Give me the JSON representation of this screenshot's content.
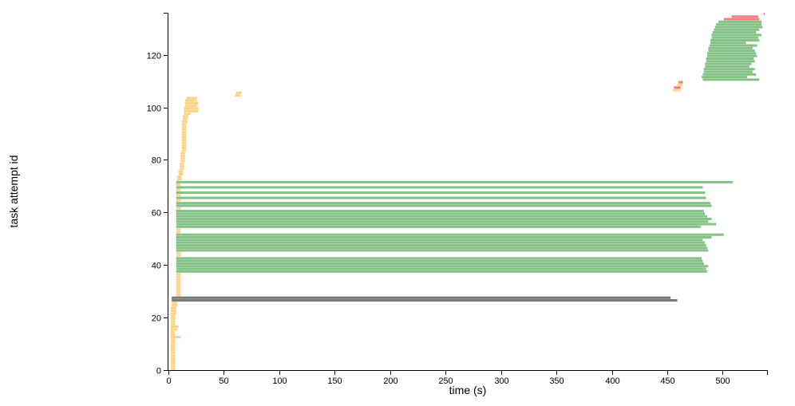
{
  "chart_data": {
    "type": "timeline",
    "xlabel": "time (s)",
    "ylabel": "task attempt id",
    "xlim": [
      0,
      540
    ],
    "ylim": [
      0,
      136
    ],
    "xticks": [
      0,
      50,
      100,
      150,
      200,
      250,
      300,
      350,
      400,
      450,
      500
    ],
    "yticks": [
      0,
      20,
      40,
      60,
      80,
      100,
      120
    ],
    "grid": false,
    "colors": {
      "yellow": "#fdd389",
      "green": "#85c285",
      "gray": "#787878",
      "red": "#f08080"
    },
    "bars": [
      {
        "id": 0,
        "start": 2,
        "end": 6,
        "color": "yellow"
      },
      {
        "id": 1,
        "start": 2,
        "end": 6,
        "color": "yellow"
      },
      {
        "id": 2,
        "start": 2,
        "end": 6,
        "color": "yellow"
      },
      {
        "id": 3,
        "start": 2,
        "end": 6,
        "color": "yellow"
      },
      {
        "id": 4,
        "start": 2,
        "end": 6,
        "color": "yellow"
      },
      {
        "id": 5,
        "start": 2,
        "end": 6,
        "color": "yellow"
      },
      {
        "id": 6,
        "start": 2,
        "end": 6,
        "color": "yellow"
      },
      {
        "id": 7,
        "start": 2,
        "end": 6,
        "color": "yellow"
      },
      {
        "id": 8,
        "start": 2,
        "end": 6,
        "color": "yellow"
      },
      {
        "id": 9,
        "start": 2,
        "end": 6,
        "color": "yellow"
      },
      {
        "id": 10,
        "start": 2,
        "end": 6,
        "color": "yellow"
      },
      {
        "id": 11,
        "start": 2,
        "end": 6,
        "color": "yellow"
      },
      {
        "id": 12,
        "start": 2,
        "end": 11,
        "color": "yellow"
      },
      {
        "id": 13,
        "start": 2,
        "end": 6,
        "color": "yellow"
      },
      {
        "id": 14,
        "start": 2,
        "end": 6,
        "color": "yellow"
      },
      {
        "id": 15,
        "start": 2,
        "end": 8,
        "color": "yellow"
      },
      {
        "id": 16,
        "start": 2,
        "end": 9,
        "color": "yellow"
      },
      {
        "id": 17,
        "start": 2,
        "end": 6,
        "color": "yellow"
      },
      {
        "id": 18,
        "start": 2,
        "end": 6,
        "color": "yellow"
      },
      {
        "id": 19,
        "start": 2,
        "end": 6,
        "color": "yellow"
      },
      {
        "id": 20,
        "start": 2,
        "end": 6,
        "color": "yellow"
      },
      {
        "id": 21,
        "start": 2,
        "end": 7,
        "color": "yellow"
      },
      {
        "id": 22,
        "start": 2,
        "end": 7,
        "color": "yellow"
      },
      {
        "id": 23,
        "start": 2,
        "end": 7,
        "color": "yellow"
      },
      {
        "id": 24,
        "start": 3,
        "end": 8,
        "color": "yellow"
      },
      {
        "id": 25,
        "start": 3,
        "end": 8,
        "color": "yellow"
      },
      {
        "id": 26,
        "start": 3,
        "end": 459,
        "color": "gray"
      },
      {
        "id": 27,
        "start": 3,
        "end": 453,
        "color": "gray"
      },
      {
        "id": 28,
        "start": 7,
        "end": 11,
        "color": "yellow"
      },
      {
        "id": 29,
        "start": 7,
        "end": 11,
        "color": "yellow"
      },
      {
        "id": 30,
        "start": 7,
        "end": 11,
        "color": "yellow"
      },
      {
        "id": 31,
        "start": 7,
        "end": 11,
        "color": "yellow"
      },
      {
        "id": 32,
        "start": 7,
        "end": 11,
        "color": "yellow"
      },
      {
        "id": 33,
        "start": 7,
        "end": 11,
        "color": "yellow"
      },
      {
        "id": 34,
        "start": 7,
        "end": 11,
        "color": "yellow"
      },
      {
        "id": 35,
        "start": 7,
        "end": 11,
        "color": "yellow"
      },
      {
        "id": 36,
        "start": 7,
        "end": 11,
        "color": "yellow"
      },
      {
        "id": 37,
        "start": 7,
        "end": 486,
        "color": "green"
      },
      {
        "id": 38,
        "start": 7,
        "end": 485,
        "color": "green"
      },
      {
        "id": 39,
        "start": 7,
        "end": 487,
        "color": "green"
      },
      {
        "id": 40,
        "start": 7,
        "end": 483,
        "color": "green"
      },
      {
        "id": 41,
        "start": 7,
        "end": 482,
        "color": "green"
      },
      {
        "id": 42,
        "start": 7,
        "end": 481,
        "color": "green"
      },
      {
        "id": 43,
        "start": 7,
        "end": 11,
        "color": "yellow"
      },
      {
        "id": 44,
        "start": 7,
        "end": 11,
        "color": "yellow"
      },
      {
        "id": 45,
        "start": 7,
        "end": 487,
        "color": "green"
      },
      {
        "id": 46,
        "start": 7,
        "end": 486,
        "color": "green"
      },
      {
        "id": 47,
        "start": 7,
        "end": 485,
        "color": "green"
      },
      {
        "id": 48,
        "start": 7,
        "end": 484,
        "color": "green"
      },
      {
        "id": 49,
        "start": 7,
        "end": 482,
        "color": "green"
      },
      {
        "id": 50,
        "start": 7,
        "end": 490,
        "color": "green"
      },
      {
        "id": 51,
        "start": 7,
        "end": 501,
        "color": "green"
      },
      {
        "id": 52,
        "start": 7,
        "end": 11,
        "color": "yellow"
      },
      {
        "id": 53,
        "start": 7,
        "end": 11,
        "color": "yellow"
      },
      {
        "id": 54,
        "start": 7,
        "end": 480,
        "color": "green"
      },
      {
        "id": 55,
        "start": 7,
        "end": 494,
        "color": "green"
      },
      {
        "id": 56,
        "start": 7,
        "end": 487,
        "color": "green"
      },
      {
        "id": 57,
        "start": 7,
        "end": 490,
        "color": "green"
      },
      {
        "id": 58,
        "start": 7,
        "end": 486,
        "color": "green"
      },
      {
        "id": 59,
        "start": 7,
        "end": 484,
        "color": "green"
      },
      {
        "id": 60,
        "start": 7,
        "end": 483,
        "color": "green"
      },
      {
        "id": 61,
        "start": 7,
        "end": 11,
        "color": "yellow"
      },
      {
        "id": 62,
        "start": 7,
        "end": 490,
        "color": "green"
      },
      {
        "id": 63,
        "start": 7,
        "end": 489,
        "color": "green"
      },
      {
        "id": 64,
        "start": 7,
        "end": 11,
        "color": "yellow"
      },
      {
        "id": 65,
        "start": 7,
        "end": 485,
        "color": "green"
      },
      {
        "id": 66,
        "start": 7,
        "end": 11,
        "color": "yellow"
      },
      {
        "id": 67,
        "start": 7,
        "end": 484,
        "color": "green"
      },
      {
        "id": 68,
        "start": 7,
        "end": 11,
        "color": "yellow"
      },
      {
        "id": 69,
        "start": 7,
        "end": 482,
        "color": "green"
      },
      {
        "id": 70,
        "start": 7,
        "end": 11,
        "color": "yellow"
      },
      {
        "id": 71,
        "start": 7,
        "end": 509,
        "color": "green"
      },
      {
        "id": 72,
        "start": 8,
        "end": 12,
        "color": "yellow"
      },
      {
        "id": 73,
        "start": 8,
        "end": 12,
        "color": "yellow"
      },
      {
        "id": 74,
        "start": 9,
        "end": 13,
        "color": "yellow"
      },
      {
        "id": 75,
        "start": 9,
        "end": 13,
        "color": "yellow"
      },
      {
        "id": 76,
        "start": 10,
        "end": 14,
        "color": "yellow"
      },
      {
        "id": 77,
        "start": 10,
        "end": 14,
        "color": "yellow"
      },
      {
        "id": 78,
        "start": 10,
        "end": 14,
        "color": "yellow"
      },
      {
        "id": 79,
        "start": 11,
        "end": 15,
        "color": "yellow"
      },
      {
        "id": 80,
        "start": 11,
        "end": 15,
        "color": "yellow"
      },
      {
        "id": 81,
        "start": 11,
        "end": 15,
        "color": "yellow"
      },
      {
        "id": 82,
        "start": 11,
        "end": 15,
        "color": "yellow"
      },
      {
        "id": 83,
        "start": 12,
        "end": 16,
        "color": "yellow"
      },
      {
        "id": 84,
        "start": 12,
        "end": 16,
        "color": "yellow"
      },
      {
        "id": 85,
        "start": 12,
        "end": 16,
        "color": "yellow"
      },
      {
        "id": 86,
        "start": 12,
        "end": 16,
        "color": "yellow"
      },
      {
        "id": 87,
        "start": 12,
        "end": 16,
        "color": "yellow"
      },
      {
        "id": 88,
        "start": 12,
        "end": 16,
        "color": "yellow"
      },
      {
        "id": 89,
        "start": 12,
        "end": 16,
        "color": "yellow"
      },
      {
        "id": 90,
        "start": 12,
        "end": 16,
        "color": "yellow"
      },
      {
        "id": 91,
        "start": 12,
        "end": 16,
        "color": "yellow"
      },
      {
        "id": 92,
        "start": 12,
        "end": 16,
        "color": "yellow"
      },
      {
        "id": 93,
        "start": 12,
        "end": 16,
        "color": "yellow"
      },
      {
        "id": 94,
        "start": 12,
        "end": 17,
        "color": "yellow"
      },
      {
        "id": 95,
        "start": 13,
        "end": 17,
        "color": "yellow"
      },
      {
        "id": 96,
        "start": 13,
        "end": 18,
        "color": "yellow"
      },
      {
        "id": 97,
        "start": 14,
        "end": 20,
        "color": "yellow"
      },
      {
        "id": 98,
        "start": 14,
        "end": 27,
        "color": "yellow"
      },
      {
        "id": 99,
        "start": 14,
        "end": 27,
        "color": "yellow"
      },
      {
        "id": 100,
        "start": 15,
        "end": 26,
        "color": "yellow"
      },
      {
        "id": 101,
        "start": 15,
        "end": 27,
        "color": "yellow"
      },
      {
        "id": 102,
        "start": 15,
        "end": 26,
        "color": "yellow"
      },
      {
        "id": 103,
        "start": 16,
        "end": 26,
        "color": "yellow"
      },
      {
        "id": 104,
        "start": 60,
        "end": 65,
        "color": "yellow"
      },
      {
        "id": 105,
        "start": 61,
        "end": 66,
        "color": "yellow"
      },
      {
        "id": 106,
        "start": 455,
        "end": 462,
        "color": "yellow"
      },
      {
        "id": 107,
        "start": 456,
        "end": 462,
        "color": "red"
      },
      {
        "id": 108,
        "start": 459,
        "end": 464,
        "color": "yellow"
      },
      {
        "id": 109,
        "start": 460,
        "end": 464,
        "color": "red"
      },
      {
        "id": 110,
        "start": 482,
        "end": 533,
        "color": "green"
      },
      {
        "id": 111,
        "start": 481,
        "end": 522,
        "color": "green"
      },
      {
        "id": 112,
        "start": 482,
        "end": 530,
        "color": "green"
      },
      {
        "id": 113,
        "start": 483,
        "end": 527,
        "color": "green"
      },
      {
        "id": 114,
        "start": 483,
        "end": 529,
        "color": "green"
      },
      {
        "id": 115,
        "start": 484,
        "end": 524,
        "color": "green"
      },
      {
        "id": 116,
        "start": 484,
        "end": 526,
        "color": "green"
      },
      {
        "id": 117,
        "start": 485,
        "end": 529,
        "color": "green"
      },
      {
        "id": 118,
        "start": 485,
        "end": 528,
        "color": "green"
      },
      {
        "id": 119,
        "start": 486,
        "end": 531,
        "color": "green"
      },
      {
        "id": 120,
        "start": 486,
        "end": 530,
        "color": "green"
      },
      {
        "id": 121,
        "start": 487,
        "end": 529,
        "color": "green"
      },
      {
        "id": 122,
        "start": 487,
        "end": 527,
        "color": "green"
      },
      {
        "id": 123,
        "start": 488,
        "end": 531,
        "color": "green"
      },
      {
        "id": 124,
        "start": 489,
        "end": 521,
        "color": "green"
      },
      {
        "id": 125,
        "start": 489,
        "end": 533,
        "color": "green"
      },
      {
        "id": 126,
        "start": 490,
        "end": 532,
        "color": "green"
      },
      {
        "id": 127,
        "start": 490,
        "end": 535,
        "color": "green"
      },
      {
        "id": 128,
        "start": 491,
        "end": 530,
        "color": "green"
      },
      {
        "id": 129,
        "start": 492,
        "end": 533,
        "color": "green"
      },
      {
        "id": 130,
        "start": 493,
        "end": 536,
        "color": "green"
      },
      {
        "id": 131,
        "start": 494,
        "end": 535,
        "color": "green"
      },
      {
        "id": 132,
        "start": 496,
        "end": 535,
        "color": "green"
      },
      {
        "id": 133,
        "start": 501,
        "end": 533,
        "color": "red"
      },
      {
        "id": 134,
        "start": 508,
        "end": 532,
        "color": "red"
      },
      {
        "id": 135,
        "start": 537,
        "end": 538,
        "color": "red"
      }
    ]
  }
}
